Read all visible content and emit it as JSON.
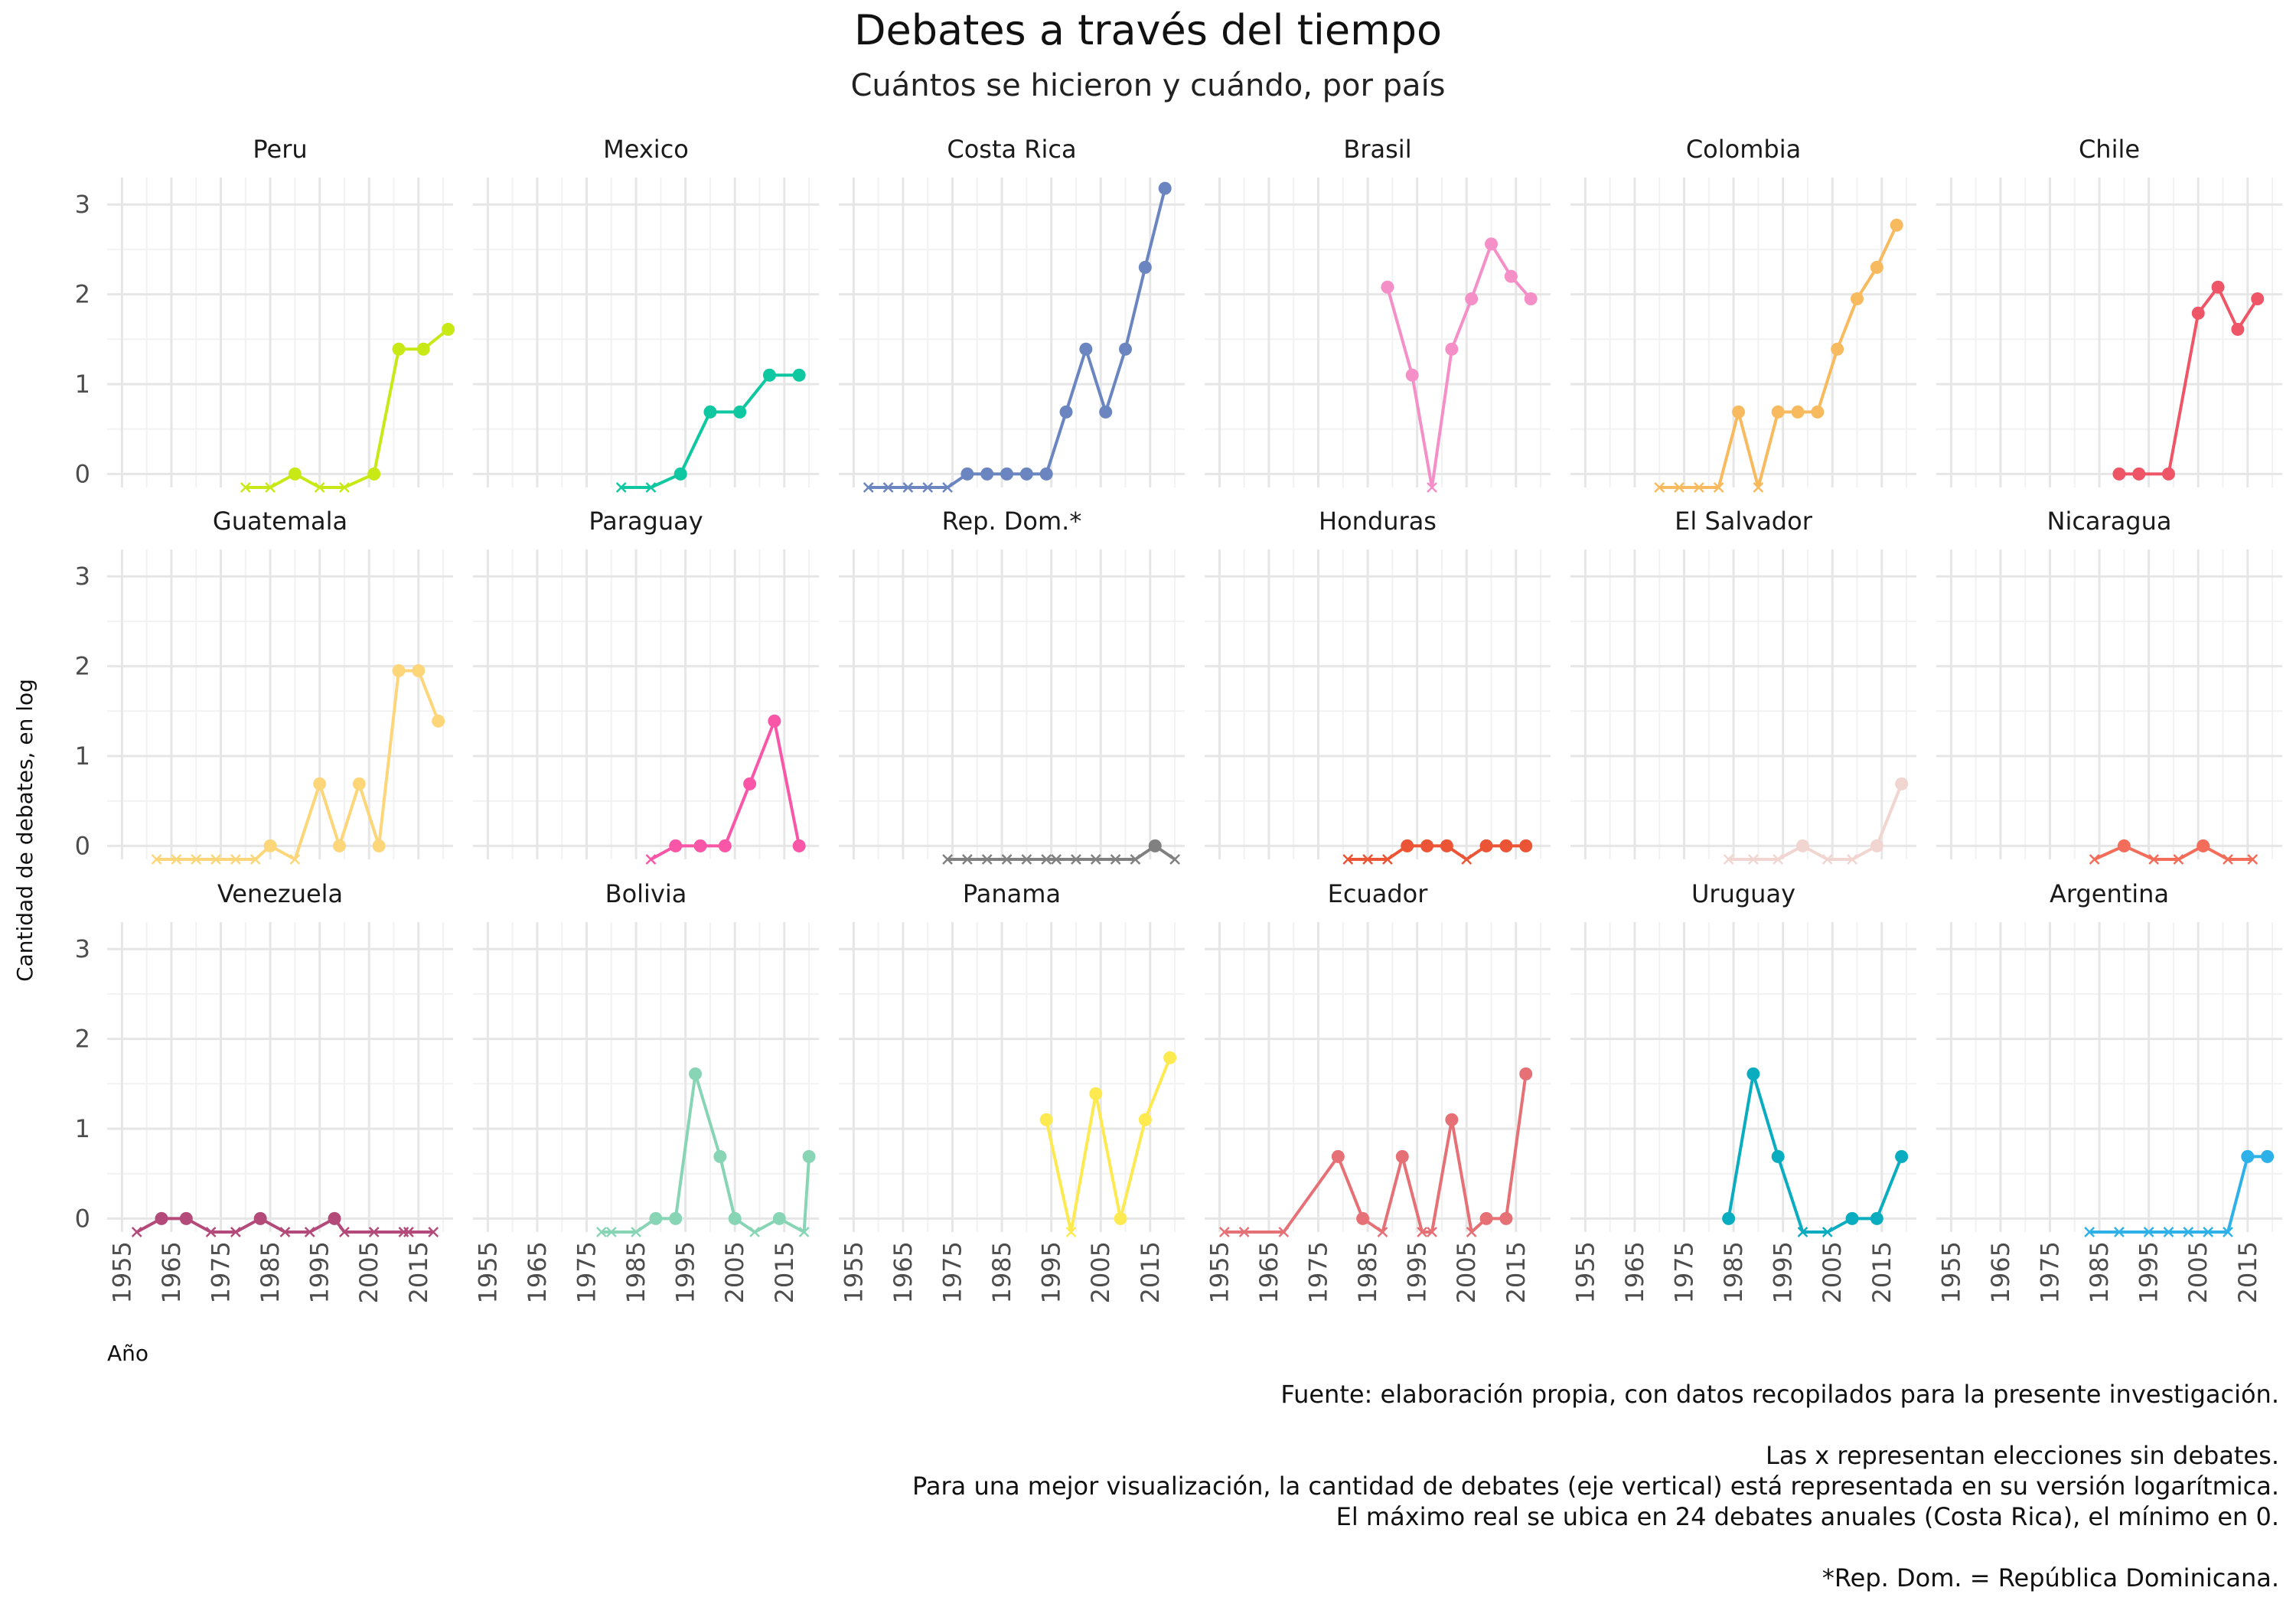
{
  "chart_data": {
    "type": "line",
    "title": "Debates a través del tiempo",
    "subtitle": "Cuántos se hicieron y cuándo, por país",
    "xlabel": "Año",
    "ylabel": "Cantidad de debates, en log",
    "xlim": [
      1952,
      2022
    ],
    "ylim": [
      -0.15,
      3.3
    ],
    "x_ticks": [
      1955,
      1965,
      1975,
      1985,
      1995,
      2005,
      2015
    ],
    "y_ticks": [
      0,
      1,
      2,
      3
    ],
    "y_scale": "log (ln of debate count)",
    "grid": true,
    "no_debate_marker": "x",
    "caption_lines": [
      "Fuente: elaboración propia, con datos recopilados para la presente investigación.",
      "",
      "Las x representan elecciones sin debates.",
      "Para una mejor visualización, la cantidad de debates (eje vertical) está representada en su versión logarítmica.",
      "El máximo real se ubica en 24 debates anuales (Costa Rica), el mínimo en 0.",
      "",
      "*Rep. Dom. = República Dominicana."
    ],
    "panels": [
      {
        "name": "Peru",
        "color": "#c8e916",
        "x": [
          1980,
          1985,
          1990,
          1995,
          2000,
          2006,
          2011,
          2016,
          2021
        ],
        "y": [
          -0.15,
          -0.15,
          0,
          -0.15,
          -0.15,
          0,
          1.39,
          1.39,
          1.61
        ]
      },
      {
        "name": "Mexico",
        "color": "#0fc7a0",
        "x": [
          1982,
          1988,
          1994,
          2000,
          2006,
          2012,
          2018
        ],
        "y": [
          -0.15,
          -0.15,
          0,
          0.69,
          0.69,
          1.1,
          1.1
        ]
      },
      {
        "name": "Costa Rica",
        "color": "#6a85c0",
        "x": [
          1958,
          1962,
          1966,
          1970,
          1974,
          1978,
          1982,
          1986,
          1990,
          1994,
          1998,
          2002,
          2006,
          2010,
          2014,
          2018
        ],
        "y": [
          -0.15,
          -0.15,
          -0.15,
          -0.15,
          -0.15,
          0,
          0,
          0,
          0,
          0,
          0.69,
          1.39,
          0.69,
          1.39,
          2.3,
          3.18
        ]
      },
      {
        "name": "Brasil",
        "color": "#f58fc8",
        "x": [
          1989,
          1994,
          1998,
          2002,
          2006,
          2010,
          2014,
          2018
        ],
        "y": [
          2.08,
          1.1,
          -0.15,
          1.39,
          1.95,
          2.56,
          2.2,
          1.95
        ]
      },
      {
        "name": "Colombia",
        "color": "#f8ba5e",
        "x": [
          1970,
          1974,
          1978,
          1982,
          1986,
          1990,
          1994,
          1998,
          2002,
          2006,
          2010,
          2014,
          2018
        ],
        "y": [
          -0.15,
          -0.15,
          -0.15,
          -0.15,
          0.69,
          -0.15,
          0.69,
          0.69,
          0.69,
          1.39,
          1.95,
          2.3,
          2.77
        ]
      },
      {
        "name": "Chile",
        "color": "#ee5566",
        "x": [
          1989,
          1993,
          1999,
          2005,
          2009,
          2013,
          2017
        ],
        "y": [
          0,
          0,
          0,
          1.79,
          2.08,
          1.61,
          1.95
        ]
      },
      {
        "name": "Guatemala",
        "color": "#fdd67a",
        "x": [
          1962,
          1966,
          1970,
          1974,
          1978,
          1982,
          1985,
          1990,
          1995,
          1999,
          2003,
          2007,
          2011,
          2015,
          2019
        ],
        "y": [
          -0.15,
          -0.15,
          -0.15,
          -0.15,
          -0.15,
          -0.15,
          0,
          -0.15,
          0.69,
          0,
          0.69,
          0,
          1.95,
          1.95,
          1.39
        ]
      },
      {
        "name": "Paraguay",
        "color": "#f956a8",
        "x": [
          1988,
          1993,
          1998,
          2003,
          2008,
          2013,
          2018
        ],
        "y": [
          -0.15,
          0,
          0,
          0,
          0.69,
          1.39,
          0
        ]
      },
      {
        "name": "Rep. Dom.*",
        "color": "#808080",
        "x": [
          1974,
          1978,
          1982,
          1986,
          1990,
          1994,
          1996,
          2000,
          2004,
          2008,
          2012,
          2016,
          2020
        ],
        "y": [
          -0.15,
          -0.15,
          -0.15,
          -0.15,
          -0.15,
          -0.15,
          -0.15,
          -0.15,
          -0.15,
          -0.15,
          -0.15,
          0,
          -0.15
        ]
      },
      {
        "name": "Honduras",
        "color": "#ec5436",
        "x": [
          1981,
          1985,
          1989,
          1993,
          1997,
          2001,
          2005,
          2009,
          2013,
          2017
        ],
        "y": [
          -0.15,
          -0.15,
          -0.15,
          0,
          0,
          0,
          -0.15,
          0,
          0,
          0
        ]
      },
      {
        "name": "El Salvador",
        "color": "#f1d5d0",
        "x": [
          1984,
          1989,
          1994,
          1999,
          2004,
          2009,
          2014,
          2019
        ],
        "y": [
          -0.15,
          -0.15,
          -0.15,
          0,
          -0.15,
          -0.15,
          0,
          0.69
        ]
      },
      {
        "name": "Nicaragua",
        "color": "#f36d5a",
        "x": [
          1984,
          1990,
          1996,
          2001,
          2006,
          2011,
          2016
        ],
        "y": [
          -0.15,
          0,
          -0.15,
          -0.15,
          0,
          -0.15,
          -0.15
        ]
      },
      {
        "name": "Venezuela",
        "color": "#b34a7a",
        "x": [
          1958,
          1963,
          1968,
          1973,
          1978,
          1983,
          1988,
          1993,
          1998,
          2000,
          2006,
          2012,
          2013,
          2018
        ],
        "y": [
          -0.15,
          0,
          0,
          -0.15,
          -0.15,
          0,
          -0.15,
          -0.15,
          0,
          -0.15,
          -0.15,
          -0.15,
          -0.15,
          -0.15
        ]
      },
      {
        "name": "Bolivia",
        "color": "#88d5b6",
        "x": [
          1978,
          1980,
          1985,
          1989,
          1993,
          1997,
          2002,
          2005,
          2009,
          2014,
          2019,
          2020
        ],
        "y": [
          -0.15,
          -0.15,
          -0.15,
          0,
          0,
          1.61,
          0.69,
          0,
          -0.15,
          0,
          -0.15,
          0.69
        ]
      },
      {
        "name": "Panama",
        "color": "#fdea50",
        "x": [
          1994,
          1999,
          2004,
          2009,
          2014,
          2019
        ],
        "y": [
          1.1,
          -0.15,
          1.39,
          0,
          1.1,
          1.79
        ]
      },
      {
        "name": "Ecuador",
        "color": "#e57075",
        "x": [
          1956,
          1960,
          1968,
          1979,
          1984,
          1988,
          1992,
          1996,
          1998,
          2002,
          2006,
          2009,
          2013,
          2017
        ],
        "y": [
          -0.15,
          -0.15,
          -0.15,
          0.69,
          0,
          -0.15,
          0.69,
          -0.15,
          -0.15,
          1.1,
          -0.15,
          0,
          0,
          1.61
        ]
      },
      {
        "name": "Uruguay",
        "color": "#0aacc0",
        "x": [
          1984,
          1989,
          1994,
          1999,
          2004,
          2009,
          2014,
          2019
        ],
        "y": [
          0,
          1.61,
          0.69,
          -0.15,
          -0.15,
          0,
          0,
          0.69
        ]
      },
      {
        "name": "Argentina",
        "color": "#2eb1e8",
        "x": [
          1983,
          1989,
          1995,
          1999,
          2003,
          2007,
          2011,
          2015,
          2019
        ],
        "y": [
          -0.15,
          -0.15,
          -0.15,
          -0.15,
          -0.15,
          -0.15,
          -0.15,
          0.69,
          0.69
        ]
      }
    ]
  }
}
